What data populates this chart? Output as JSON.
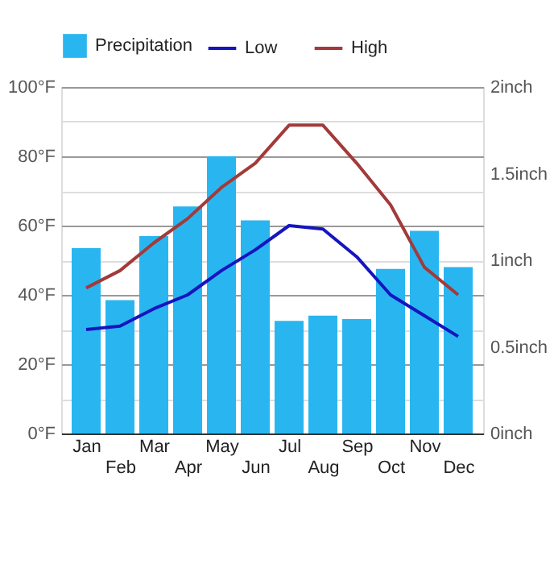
{
  "chart_data": {
    "type": "bar",
    "categories": [
      "Jan",
      "Feb",
      "Mar",
      "Apr",
      "May",
      "Jun",
      "Jul",
      "Aug",
      "Sep",
      "Oct",
      "Nov",
      "Dec"
    ],
    "series": [
      {
        "name": "Precipitation",
        "axis": "y2",
        "color": "#29b6f0",
        "values": [
          1.07,
          0.77,
          1.14,
          1.31,
          1.6,
          1.23,
          0.65,
          0.68,
          0.66,
          0.95,
          1.17,
          0.96
        ]
      },
      {
        "name": "Low",
        "type": "line",
        "color": "#1515c0",
        "values": [
          30,
          31,
          36,
          40,
          47,
          53,
          60,
          59,
          51,
          40,
          34,
          28
        ]
      },
      {
        "name": "High",
        "type": "line",
        "color": "#a33a3a",
        "values": [
          42,
          47,
          55,
          62,
          71,
          78,
          89,
          89,
          78,
          66,
          48,
          40
        ]
      }
    ],
    "ylim": [
      0,
      100
    ],
    "yticks": [
      {
        "value": 0,
        "label": "0°F"
      },
      {
        "value": 10,
        "label": null
      },
      {
        "value": 20,
        "label": "20°F"
      },
      {
        "value": 30,
        "label": null
      },
      {
        "value": 40,
        "label": "40°F"
      },
      {
        "value": 50,
        "label": null
      },
      {
        "value": 60,
        "label": "60°F"
      },
      {
        "value": 70,
        "label": null
      },
      {
        "value": 80,
        "label": "80°F"
      },
      {
        "value": 90,
        "label": null
      },
      {
        "value": 100,
        "label": "100°F"
      }
    ],
    "y2lim": [
      0,
      2
    ],
    "y2ticks": [
      {
        "value": 0,
        "label": "0inch"
      },
      {
        "value": 0.5,
        "label": "0.5inch"
      },
      {
        "value": 1,
        "label": "1inch"
      },
      {
        "value": 1.5,
        "label": "1.5inch"
      },
      {
        "value": 2,
        "label": "2inch"
      }
    ],
    "grid": "y",
    "legend": "top left"
  }
}
